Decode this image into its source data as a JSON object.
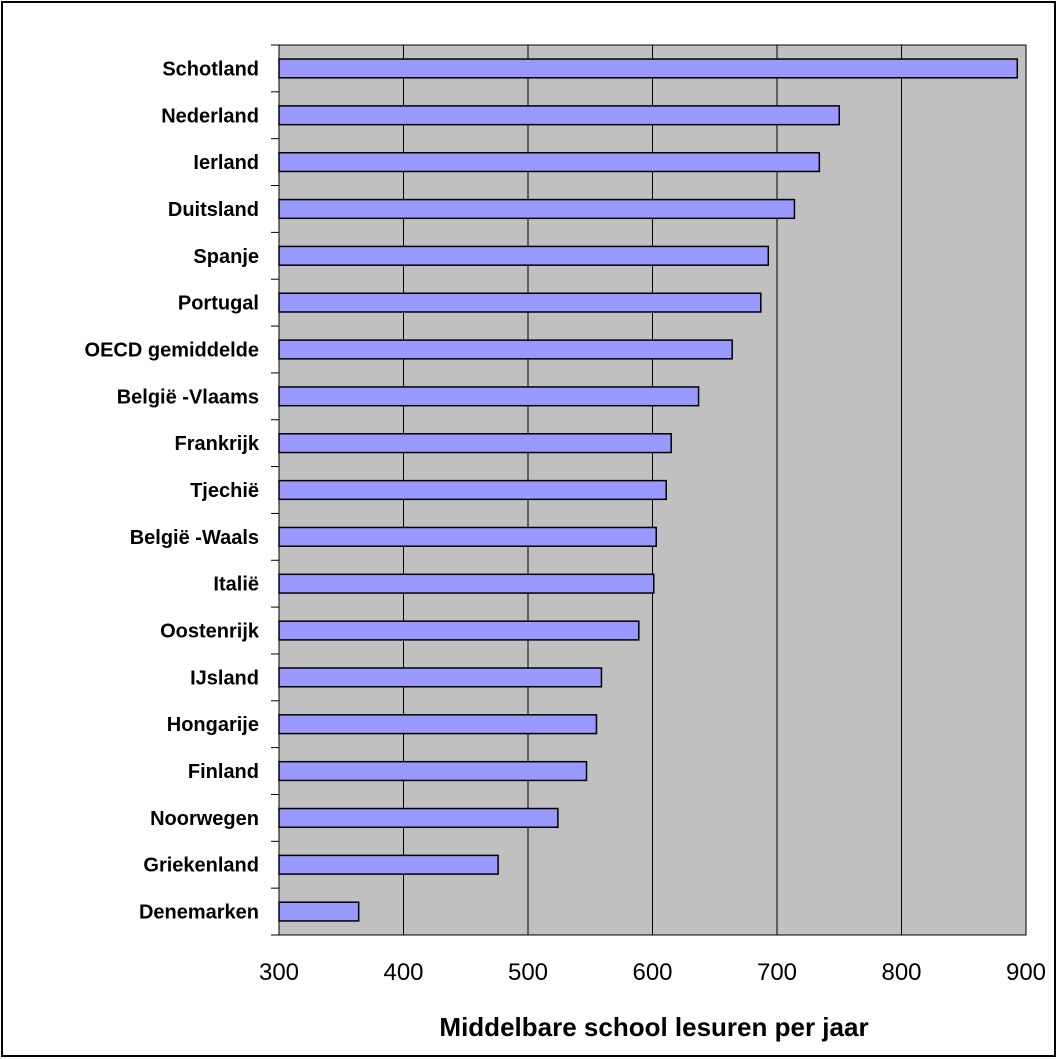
{
  "chart_data": {
    "type": "bar",
    "orientation": "horizontal",
    "categories": [
      "Schotland",
      "Nederland",
      "Ierland",
      "Duitsland",
      "Spanje",
      "Portugal",
      "OECD gemiddelde",
      "België -Vlaams",
      "Frankrijk",
      "Tjechië",
      "België -Waals",
      "Italië",
      "Oostenrijk",
      "IJsland",
      "Hongarije",
      "Finland",
      "Noorwegen",
      "Griekenland",
      "Denemarken"
    ],
    "values": [
      893,
      750,
      734,
      714,
      693,
      687,
      664,
      637,
      615,
      611,
      603,
      601,
      589,
      559,
      555,
      547,
      524,
      476,
      364
    ],
    "xlabel": "Middelbare school lesuren per jaar",
    "xlim": [
      300,
      900
    ],
    "xticks": [
      300,
      400,
      500,
      600,
      700,
      800,
      900
    ],
    "grid": "vertical",
    "legend": "none",
    "colors": {
      "bar_fill": "#9999ff",
      "plot_background": "#c0c0c0",
      "gridline": "#000000"
    }
  }
}
